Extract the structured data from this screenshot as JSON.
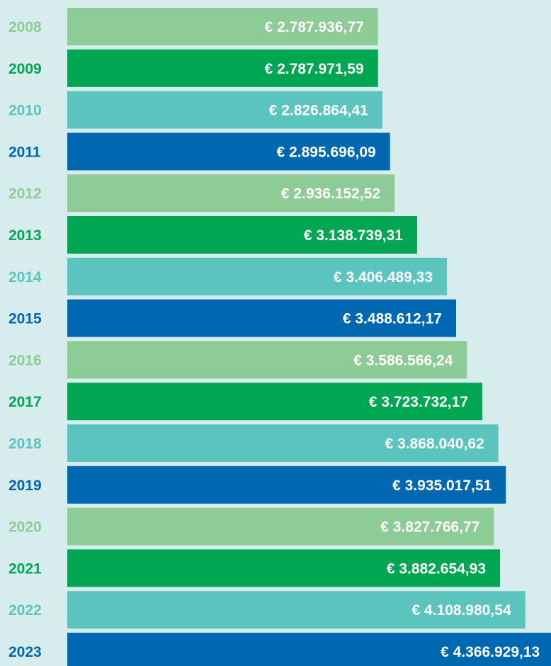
{
  "chart_data": {
    "type": "bar",
    "orientation": "horizontal",
    "categories": [
      "2008",
      "2009",
      "2010",
      "2011",
      "2012",
      "2013",
      "2014",
      "2015",
      "2016",
      "2017",
      "2018",
      "2019",
      "2020",
      "2021",
      "2022",
      "2023"
    ],
    "values": [
      2787936.77,
      2787971.59,
      2826864.41,
      2895696.09,
      2936152.52,
      3138739.31,
      3406489.33,
      3488612.17,
      3586566.24,
      3723732.17,
      3868040.62,
      3935017.51,
      3827766.77,
      3882654.93,
      4108980.54,
      4366929.13
    ],
    "value_labels": [
      "€ 2.787.936,77",
      "€ 2.787.971,59",
      "€ 2.826.864,41",
      "€ 2.895.696,09",
      "€ 2.936.152,52",
      "€ 3.138.739,31",
      "€ 3.406.489,33",
      "€ 3.488.612,17",
      "€ 3.586.566,24",
      "€ 3.723.732,17",
      "€ 3.868.040,62",
      "€ 3.935.017,51",
      "€ 3.827.766,77",
      "€ 3.882.654,93",
      "€ 4.108.980,54",
      "€ 4.366.929,13"
    ],
    "colors": [
      "#8dcc96",
      "#00a651",
      "#5bc4bf",
      "#0068b1"
    ],
    "xlim": [
      0,
      4340000
    ]
  }
}
